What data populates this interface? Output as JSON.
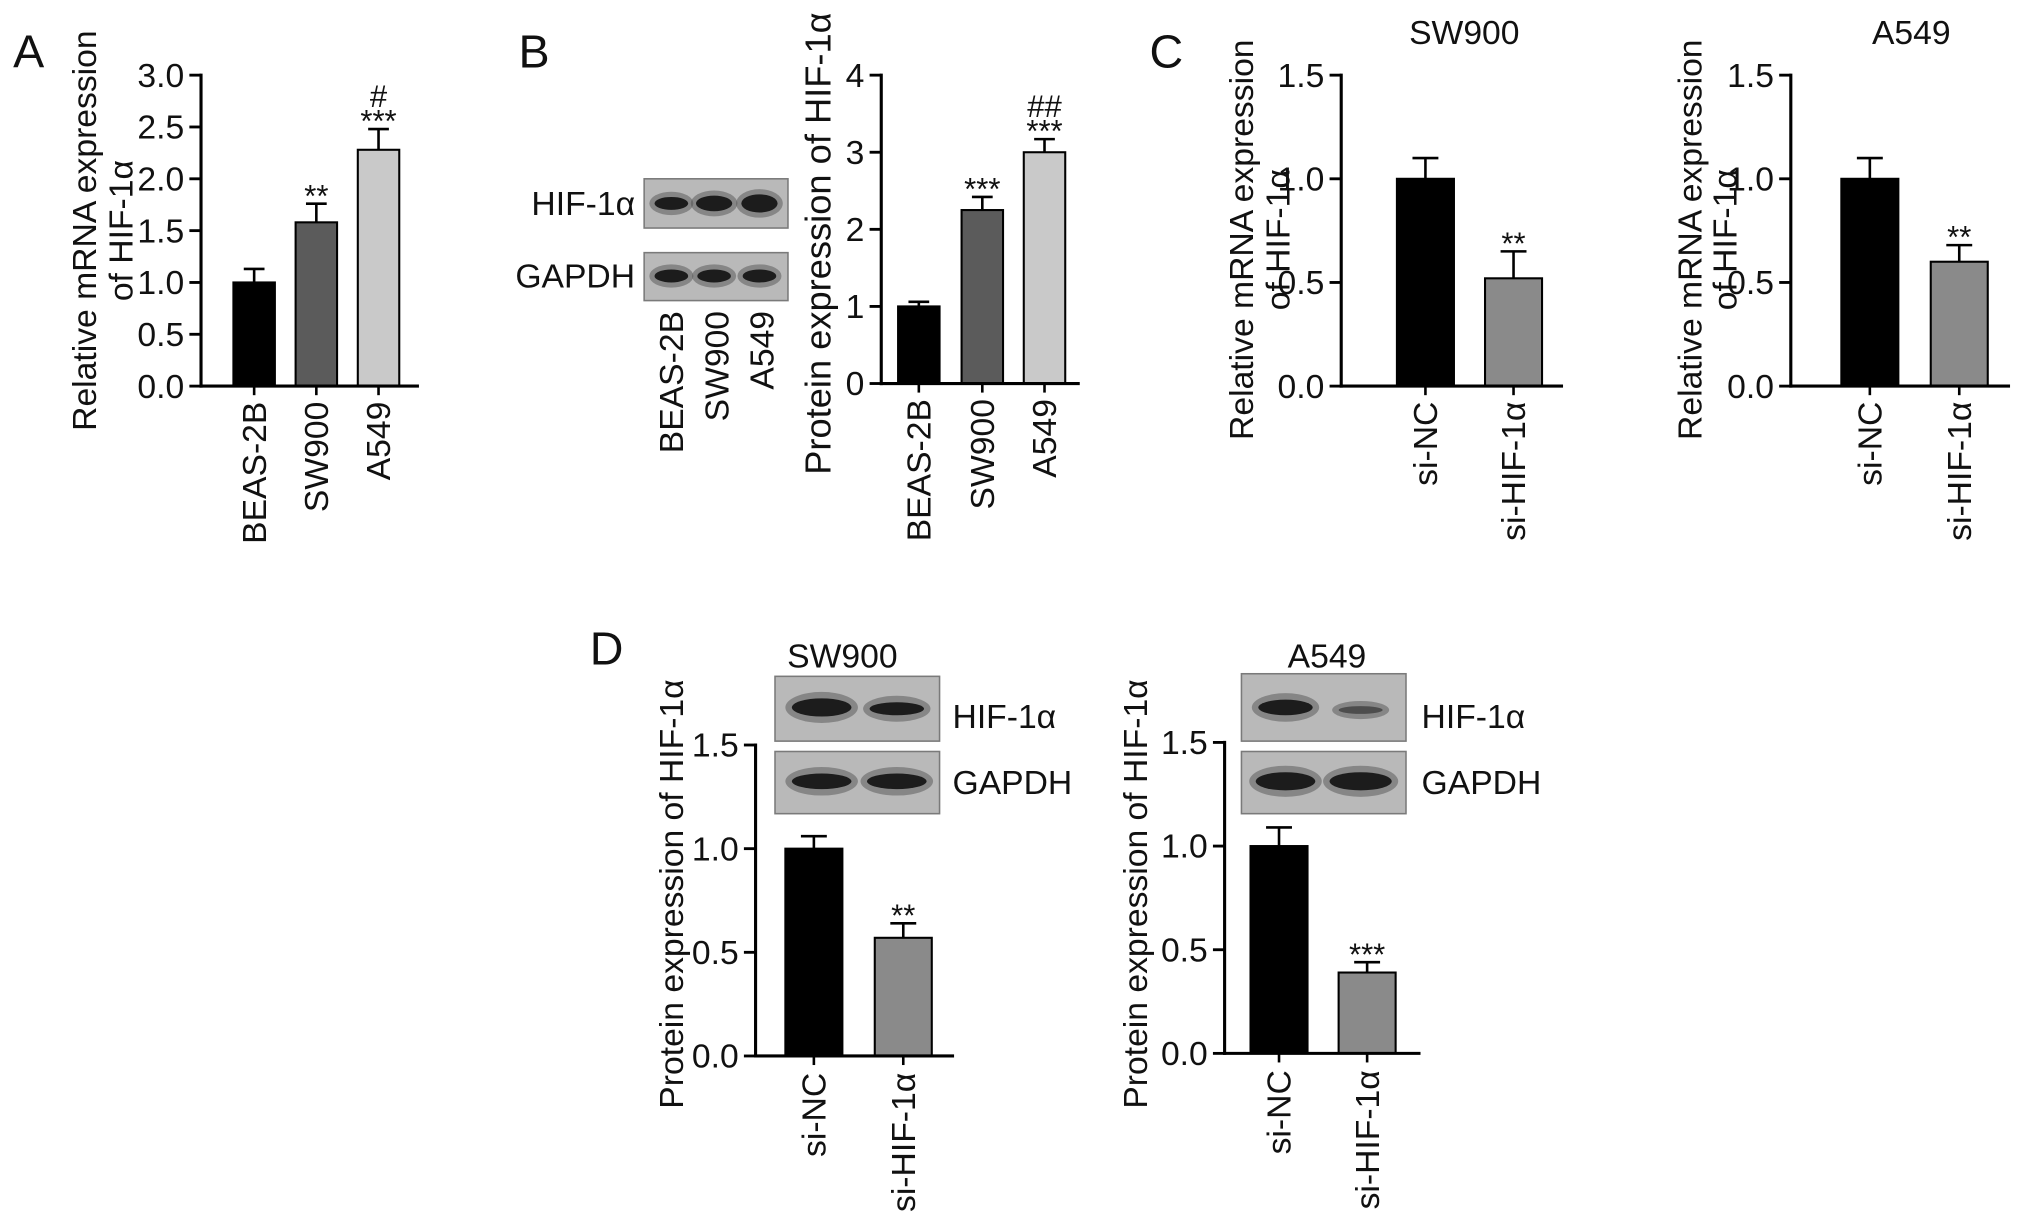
{
  "panel_labels": [
    "A",
    "B",
    "C",
    "D"
  ],
  "blots": [
    {
      "rows": [
        "HIF-1α",
        "GAPDH"
      ],
      "lanes": [
        "BEAS-2B",
        "SW900",
        "A549"
      ]
    },
    {
      "rows": [
        "HIF-1α",
        "GAPDH"
      ]
    },
    {
      "rows": [
        "HIF-1α",
        "GAPDH"
      ]
    }
  ],
  "chart_data": [
    {
      "type": "bar",
      "ylabel_lines": [
        "Relative mRNA expression",
        "of HIF-1α"
      ],
      "categories": [
        "BEAS-2B",
        "SW900",
        "A549"
      ],
      "values": [
        1.0,
        1.58,
        2.28
      ],
      "errors": [
        0.13,
        0.18,
        0.2
      ],
      "colors": [
        "#000000",
        "#5b5b5b",
        "#c9c9c9"
      ],
      "annotations": [
        [],
        [
          "**"
        ],
        [
          "#",
          "***"
        ]
      ],
      "ylim": [
        0,
        3.0
      ],
      "yticks": [
        0,
        0.5,
        1.0,
        1.5,
        2.0,
        2.5,
        3.0
      ],
      "ytick_labels": [
        "0.0",
        "0.5",
        "1.0",
        "1.5",
        "2.0",
        "2.5",
        "3.0"
      ]
    },
    {
      "type": "bar",
      "ylabel_lines": [
        "Protein expression of HIF-1α"
      ],
      "categories": [
        "BEAS-2B",
        "SW900",
        "A549"
      ],
      "values": [
        1.0,
        2.25,
        3.0
      ],
      "errors": [
        0.06,
        0.17,
        0.17
      ],
      "colors": [
        "#000000",
        "#5b5b5b",
        "#c9c9c9"
      ],
      "annotations": [
        [],
        [
          "***"
        ],
        [
          "##",
          "***"
        ]
      ],
      "ylim": [
        0,
        4
      ],
      "yticks": [
        0,
        1,
        2,
        3,
        4
      ],
      "ytick_labels": [
        "0",
        "1",
        "2",
        "3",
        "4"
      ]
    },
    {
      "type": "bar",
      "title": "SW900",
      "ylabel_lines": [
        "Relative mRNA expression",
        "of HIF-1α"
      ],
      "categories": [
        "si-NC",
        "si-HIF-1α"
      ],
      "values": [
        1.0,
        0.52
      ],
      "errors": [
        0.1,
        0.13
      ],
      "colors": [
        "#000000",
        "#8a8a8a"
      ],
      "annotations": [
        [],
        [
          "**"
        ]
      ],
      "ylim": [
        0,
        1.5
      ],
      "yticks": [
        0,
        0.5,
        1.0,
        1.5
      ],
      "ytick_labels": [
        "0.0",
        "0.5",
        "1.0",
        "1.5"
      ]
    },
    {
      "type": "bar",
      "title": "A549",
      "ylabel_lines": [
        "Relative mRNA expression",
        "of HIF-1α"
      ],
      "categories": [
        "si-NC",
        "si-HIF-1α"
      ],
      "values": [
        1.0,
        0.6
      ],
      "errors": [
        0.1,
        0.08
      ],
      "colors": [
        "#000000",
        "#8a8a8a"
      ],
      "annotations": [
        [],
        [
          "**"
        ]
      ],
      "ylim": [
        0,
        1.5
      ],
      "yticks": [
        0,
        0.5,
        1.0,
        1.5
      ],
      "ytick_labels": [
        "0.0",
        "0.5",
        "1.0",
        "1.5"
      ]
    },
    {
      "type": "bar",
      "title": "SW900",
      "ylabel_lines": [
        "Protein expression of HIF-1α"
      ],
      "categories": [
        "si-NC",
        "si-HIF-1α"
      ],
      "values": [
        1.0,
        0.57
      ],
      "errors": [
        0.06,
        0.07
      ],
      "colors": [
        "#000000",
        "#8a8a8a"
      ],
      "annotations": [
        [],
        [
          "**"
        ]
      ],
      "ylim": [
        0,
        1.5
      ],
      "yticks": [
        0,
        0.5,
        1.0,
        1.5
      ],
      "ytick_labels": [
        "0.0",
        "0.5",
        "1.0",
        "1.5"
      ]
    },
    {
      "type": "bar",
      "title": "A549",
      "ylabel_lines": [
        "Protein expression of HIF-1α"
      ],
      "categories": [
        "si-NC",
        "si-HIF-1α"
      ],
      "values": [
        1.0,
        0.39
      ],
      "errors": [
        0.09,
        0.05
      ],
      "colors": [
        "#000000",
        "#8a8a8a"
      ],
      "annotations": [
        [],
        [
          "***"
        ]
      ],
      "ylim": [
        0,
        1.5
      ],
      "yticks": [
        0,
        0.5,
        1.0,
        1.5
      ],
      "ytick_labels": [
        "0.0",
        "0.5",
        "1.0",
        "1.5"
      ]
    }
  ]
}
